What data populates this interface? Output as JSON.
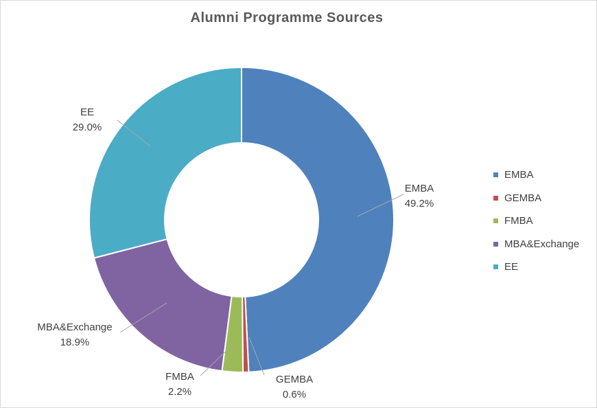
{
  "chart_data": {
    "type": "pie",
    "variant": "doughnut",
    "title": "Alumni Programme Sources",
    "categories": [
      "EMBA",
      "GEMBA",
      "FMBA",
      "MBA&Exchange",
      "EE"
    ],
    "values": [
      49.2,
      0.6,
      2.2,
      18.9,
      29.0
    ],
    "value_labels": [
      "49.2%",
      "0.6%",
      "2.2%",
      "18.9%",
      "29.0%"
    ],
    "colors": [
      "#4f81bd",
      "#c0504d",
      "#9bbb59",
      "#8064a2",
      "#4bacc6"
    ],
    "legend_position": "right",
    "data_labels": "category name and percentage outside with leader lines"
  }
}
